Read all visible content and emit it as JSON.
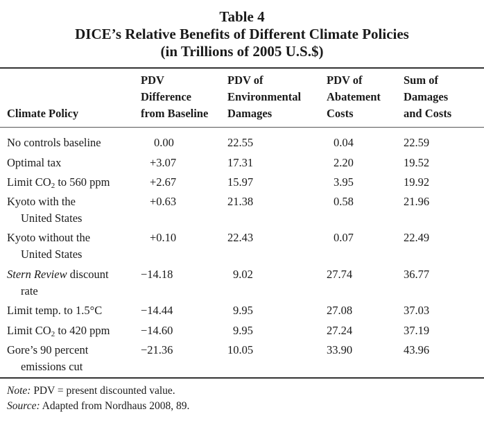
{
  "table": {
    "caption": "Table 4",
    "title": "DICE’s Relative Benefits of Different Climate Policies",
    "subtitle": "(in Trillions of 2005 U.S.$)",
    "headers": {
      "policy": [
        "Climate Policy"
      ],
      "pdv_difference": [
        "PDV",
        "Difference",
        "from Baseline"
      ],
      "pdv_environmental": [
        "PDV of",
        "Environmental",
        "Damages"
      ],
      "pdv_abatement": [
        "PDV of",
        "Abatement",
        "Costs"
      ],
      "sum": [
        "Sum of",
        "Damages",
        "and Costs"
      ]
    },
    "rows": [
      {
        "policy": [
          "No controls baseline"
        ],
        "pdv_difference": "0.00",
        "pdv_environmental": "22.55",
        "pdv_abatement": "0.04",
        "sum": "22.59"
      },
      {
        "policy": [
          "Optimal tax"
        ],
        "pdv_difference": "+3.07",
        "pdv_environmental": "17.31",
        "pdv_abatement": "2.20",
        "sum": "19.52"
      },
      {
        "policy": [
          "Limit CO2 to 560 ppm"
        ],
        "pdv_difference": "+2.67",
        "pdv_environmental": "15.97",
        "pdv_abatement": "3.95",
        "sum": "19.92"
      },
      {
        "policy": [
          "Kyoto with the",
          "United States"
        ],
        "pdv_difference": "+0.63",
        "pdv_environmental": "21.38",
        "pdv_abatement": "0.58",
        "sum": "21.96"
      },
      {
        "policy": [
          "Kyoto without the",
          "United States"
        ],
        "pdv_difference": "+0.10",
        "pdv_environmental": "22.43",
        "pdv_abatement": "0.07",
        "sum": "22.49"
      },
      {
        "policy": [
          "Stern Review discount",
          "rate"
        ],
        "pdv_difference": "−14.18",
        "pdv_environmental": "9.02",
        "pdv_abatement": "27.74",
        "sum": "36.77"
      },
      {
        "policy": [
          "Limit temp. to 1.5°C"
        ],
        "pdv_difference": "−14.44",
        "pdv_environmental": "9.95",
        "pdv_abatement": "27.08",
        "sum": "37.03"
      },
      {
        "policy": [
          "Limit CO2 to 420 ppm"
        ],
        "pdv_difference": "−14.60",
        "pdv_environmental": "9.95",
        "pdv_abatement": "27.24",
        "sum": "37.19"
      },
      {
        "policy": [
          "Gore’s 90 percent",
          "emissions cut"
        ],
        "pdv_difference": "−21.36",
        "pdv_environmental": "10.05",
        "pdv_abatement": "33.90",
        "sum": "43.96"
      }
    ]
  },
  "notes": {
    "note_label": "Note:",
    "note_text": "PDV = present discounted value.",
    "source_label": "Source:",
    "source_text": "Adapted from Nordhaus 2008, 89."
  }
}
